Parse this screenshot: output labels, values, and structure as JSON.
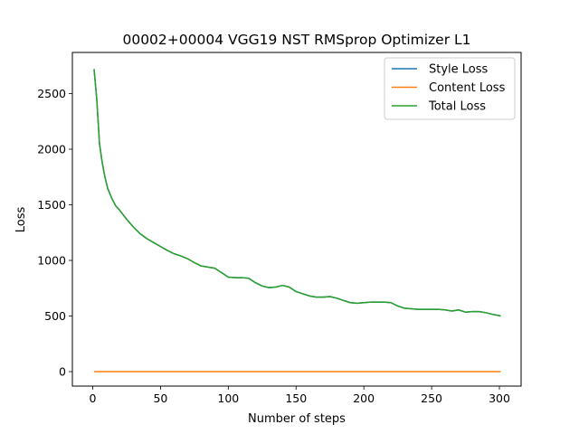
{
  "chart_data": {
    "type": "line",
    "title": "00002+00004 VGG19 NST RMSprop Optimizer L1",
    "xlabel": "Number of steps",
    "ylabel": "Loss",
    "xlim": [
      -15,
      316
    ],
    "ylim": [
      -130,
      2870
    ],
    "xticks": [
      0,
      50,
      100,
      150,
      200,
      250,
      300
    ],
    "yticks": [
      0,
      500,
      1000,
      1500,
      2000,
      2500
    ],
    "grid": false,
    "legend_position": "top-right",
    "series": [
      {
        "name": "Style Loss",
        "color": "#1f77b4",
        "x": [
          1,
          3,
          5,
          7,
          9,
          11,
          14,
          17,
          20,
          25,
          30,
          35,
          40,
          45,
          50,
          55,
          60,
          65,
          70,
          75,
          80,
          85,
          90,
          95,
          100,
          105,
          110,
          115,
          120,
          125,
          130,
          135,
          140,
          145,
          150,
          155,
          160,
          165,
          170,
          175,
          180,
          185,
          190,
          195,
          200,
          205,
          210,
          215,
          220,
          225,
          230,
          235,
          240,
          245,
          250,
          255,
          260,
          265,
          270,
          275,
          280,
          285,
          290,
          295,
          301
        ],
        "y": [
          2720,
          2450,
          2050,
          1880,
          1750,
          1650,
          1560,
          1490,
          1450,
          1370,
          1300,
          1240,
          1195,
          1160,
          1125,
          1090,
          1060,
          1040,
          1015,
          980,
          950,
          940,
          930,
          890,
          850,
          845,
          845,
          840,
          800,
          770,
          755,
          760,
          775,
          760,
          720,
          700,
          680,
          670,
          670,
          675,
          660,
          640,
          620,
          615,
          620,
          625,
          625,
          625,
          620,
          590,
          570,
          565,
          560,
          560,
          560,
          560,
          555,
          545,
          555,
          535,
          540,
          540,
          530,
          515,
          500
        ]
      },
      {
        "name": "Content Loss",
        "color": "#ff7f0e",
        "x": [
          1,
          50,
          100,
          150,
          200,
          250,
          301
        ],
        "y": [
          0,
          0,
          0,
          0,
          0,
          0,
          0
        ]
      },
      {
        "name": "Total Loss",
        "color": "#2ca02c",
        "x": [
          1,
          3,
          5,
          7,
          9,
          11,
          14,
          17,
          20,
          25,
          30,
          35,
          40,
          45,
          50,
          55,
          60,
          65,
          70,
          75,
          80,
          85,
          90,
          95,
          100,
          105,
          110,
          115,
          120,
          125,
          130,
          135,
          140,
          145,
          150,
          155,
          160,
          165,
          170,
          175,
          180,
          185,
          190,
          195,
          200,
          205,
          210,
          215,
          220,
          225,
          230,
          235,
          240,
          245,
          250,
          255,
          260,
          265,
          270,
          275,
          280,
          285,
          290,
          295,
          301
        ],
        "y": [
          2720,
          2450,
          2050,
          1880,
          1750,
          1650,
          1560,
          1490,
          1450,
          1370,
          1300,
          1240,
          1195,
          1160,
          1125,
          1090,
          1060,
          1040,
          1015,
          980,
          950,
          940,
          930,
          890,
          850,
          845,
          845,
          840,
          800,
          770,
          755,
          760,
          775,
          760,
          720,
          700,
          680,
          670,
          670,
          675,
          660,
          640,
          620,
          615,
          620,
          625,
          625,
          625,
          620,
          590,
          570,
          565,
          560,
          560,
          560,
          560,
          555,
          545,
          555,
          535,
          540,
          540,
          530,
          515,
          500
        ]
      }
    ]
  }
}
